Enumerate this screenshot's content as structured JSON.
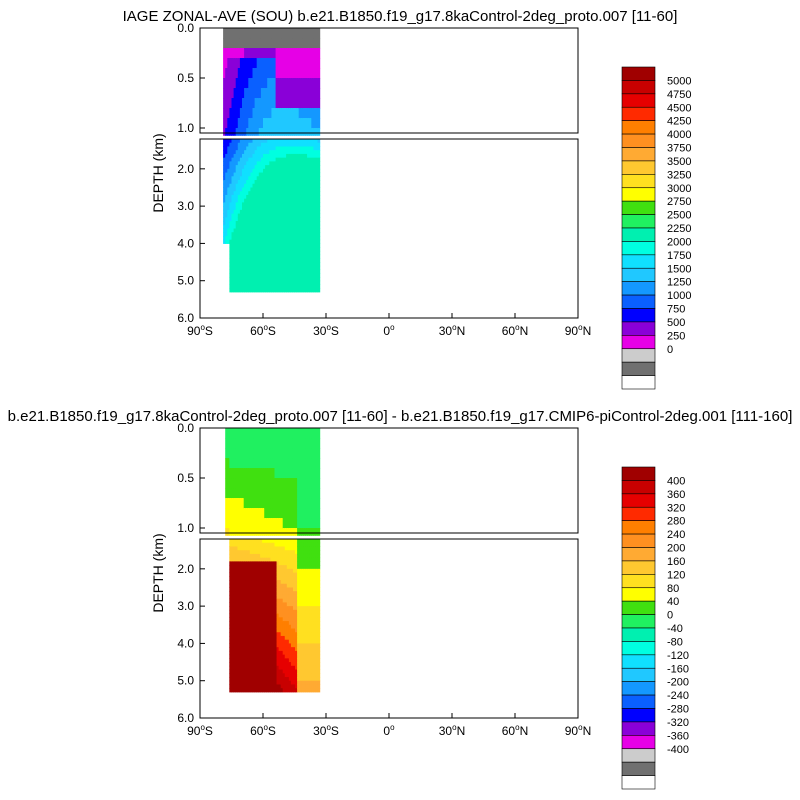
{
  "chart_data": [
    {
      "type": "heatmap",
      "title": "IAGE ZONAL-AVE (SOU) b.e21.B1850.f19_g17.8kaControl-2deg_proto.007 [11-60]",
      "ylabel": "DEPTH (km)",
      "x_ticks": [
        "90°S",
        "60°S",
        "30°S",
        "0°",
        "30°N",
        "60°N",
        "90°N"
      ],
      "y_ticks_upper": [
        "0.0",
        "0.5",
        "1.0"
      ],
      "y_ticks_lower": [
        "2.0",
        "3.0",
        "4.0",
        "5.0",
        "6.0"
      ],
      "xlim": [
        -90,
        90
      ],
      "ylim_km": [
        6,
        0
      ],
      "data_lat_range": [
        -79,
        -33
      ],
      "colorbar": {
        "labels": [
          "5000",
          "4750",
          "4500",
          "4250",
          "4000",
          "3750",
          "3500",
          "3250",
          "3000",
          "2750",
          "2500",
          "2250",
          "2000",
          "1750",
          "1500",
          "1250",
          "1000",
          "750",
          "500",
          "250",
          "0"
        ],
        "colors": [
          "#a00000",
          "#c80000",
          "#e60000",
          "#ff2a00",
          "#ff7f00",
          "#ff9020",
          "#ffaa33",
          "#ffc830",
          "#ffe020",
          "#ffff00",
          "#40e010",
          "#20f060",
          "#00f0b0",
          "#00ffe0",
          "#10e0ff",
          "#20c8ff",
          "#1498ff",
          "#0a60ff",
          "#0000ff",
          "#8a00d8",
          "#e600e6",
          "#cccccc",
          "#707070",
          "#ffffff"
        ]
      }
    },
    {
      "type": "heatmap",
      "title": "b.e21.B1850.f19_g17.8kaControl-2deg_proto.007 [11-60] - b.e21.B1850.f19_g17.CMIP6-piControl-2deg.001 [111-160]",
      "ylabel": "DEPTH (km)",
      "x_ticks": [
        "90°S",
        "60°S",
        "30°S",
        "0°",
        "30°N",
        "60°N",
        "90°N"
      ],
      "y_ticks_upper": [
        "0.0",
        "0.5",
        "1.0"
      ],
      "y_ticks_lower": [
        "2.0",
        "3.0",
        "4.0",
        "5.0",
        "6.0"
      ],
      "xlim": [
        -90,
        90
      ],
      "ylim_km": [
        6,
        0
      ],
      "data_lat_range": [
        -78,
        -33
      ],
      "colorbar": {
        "labels": [
          "400",
          "360",
          "320",
          "280",
          "240",
          "200",
          "160",
          "120",
          "80",
          "40",
          "0",
          "-40",
          "-80",
          "-120",
          "-160",
          "-200",
          "-240",
          "-280",
          "-320",
          "-360",
          "-400"
        ],
        "colors": [
          "#a00000",
          "#c80000",
          "#e60000",
          "#ff2a00",
          "#ff7f00",
          "#ff9020",
          "#ffaa33",
          "#ffc830",
          "#ffe020",
          "#ffff00",
          "#40e010",
          "#20f060",
          "#00f0b0",
          "#00ffe0",
          "#10e0ff",
          "#20c8ff",
          "#1498ff",
          "#0a60ff",
          "#0000ff",
          "#8a00d8",
          "#e600e6",
          "#cccccc",
          "#707070",
          "#ffffff"
        ]
      }
    }
  ]
}
